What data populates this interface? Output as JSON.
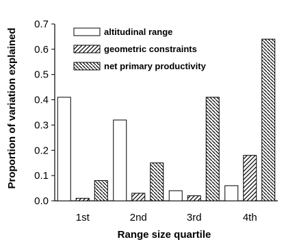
{
  "chart_data": {
    "type": "bar",
    "title": "",
    "xlabel": "Range size quartile",
    "ylabel": "Proportion of variation explained",
    "categories": [
      "1st",
      "2nd",
      "3rd",
      "4th"
    ],
    "ylim": [
      0,
      0.7
    ],
    "yticks": [
      "0.0",
      "0.1",
      "0.2",
      "0.3",
      "0.4",
      "0.5",
      "0.6",
      "0.7"
    ],
    "grid": false,
    "legend_position": "top-left",
    "series": [
      {
        "name": "altitudinal range",
        "values": [
          0.41,
          0.32,
          0.04,
          0.06
        ],
        "pattern": "none"
      },
      {
        "name": "geometric constraints",
        "values": [
          0.01,
          0.03,
          0.02,
          0.18
        ],
        "pattern": "hatch-forward"
      },
      {
        "name": "net primary productivity",
        "values": [
          0.08,
          0.15,
          0.41,
          0.64
        ],
        "pattern": "hatch-back"
      }
    ]
  }
}
